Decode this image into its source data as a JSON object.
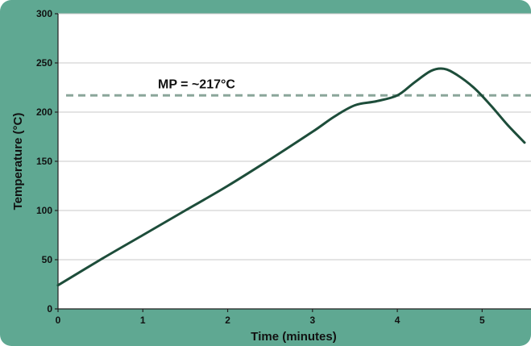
{
  "chart_data": {
    "type": "line",
    "title": "",
    "xlabel": "Time (minutes)",
    "ylabel": "Temperature (°C)",
    "xlim": [
      0,
      5.5
    ],
    "ylim": [
      0,
      300
    ],
    "x_ticks": [
      "0",
      "1",
      "2",
      "3",
      "4",
      "5"
    ],
    "y_ticks": [
      "0",
      "50",
      "100",
      "150",
      "200",
      "250",
      "300"
    ],
    "grid": true,
    "legend": "none",
    "series": [
      {
        "x": [
          0,
          0.5,
          1,
          1.5,
          2,
          2.5,
          3,
          3.25,
          3.5,
          3.75,
          4,
          4.2,
          4.4,
          4.55,
          4.7,
          4.9,
          5.1,
          5.3,
          5.5
        ],
        "y": [
          24,
          50,
          75,
          100,
          125,
          152,
          180,
          195,
          207,
          211,
          217,
          230,
          242,
          244,
          238,
          225,
          207,
          187,
          169
        ],
        "color": "#1d4d3a"
      }
    ],
    "reference_lines": [
      {
        "orientation": "horizontal",
        "y": 217,
        "label": "MP = ~217°C",
        "color": "#8aa69a",
        "style": "dashed"
      }
    ],
    "colors": {
      "frame": "#5fa892",
      "plot_background": "#ffffff",
      "grid": "#c9c9c9"
    }
  }
}
